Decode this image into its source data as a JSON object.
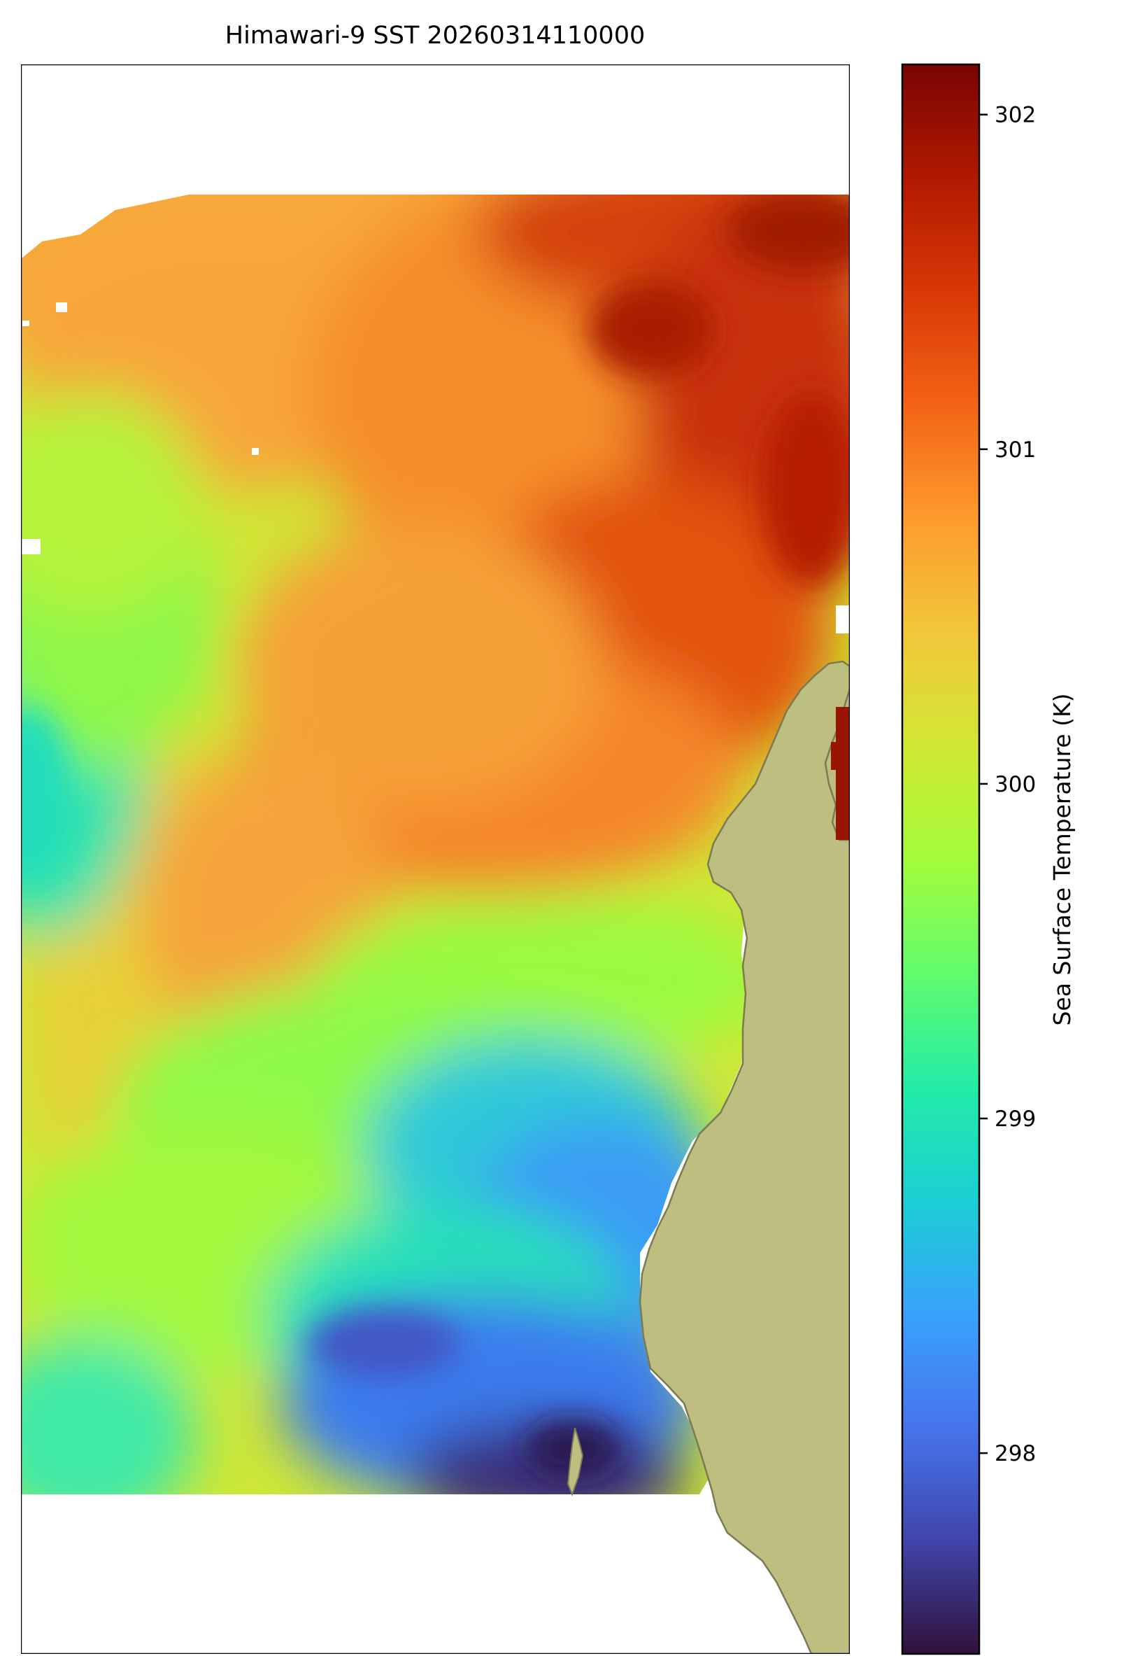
{
  "map": {
    "title": "Himawari-9 SST 20260314110000",
    "variable": "Sea Surface Temperature",
    "units": "K",
    "land_color": "#BDBE80",
    "coastline_color": "#7A7A55",
    "no_data_color": "#FFFFFF",
    "colormap_name": "turbo",
    "colormap": [
      "#30123B",
      "#4145AB",
      "#4675ED",
      "#39A2FC",
      "#1BCFD4",
      "#24ECA6",
      "#61FC6C",
      "#A4FC3B",
      "#D1E834",
      "#F3C63A",
      "#FE9B2D",
      "#F36315",
      "#D93806",
      "#B11901",
      "#7A0402"
    ]
  },
  "colorbar": {
    "label": "Sea Surface Temperature (K)",
    "vmin": 297.4,
    "vmax": 302.15,
    "ticks": [
      {
        "value": 298,
        "label": "298"
      },
      {
        "value": 299,
        "label": "299"
      },
      {
        "value": 300,
        "label": "300"
      },
      {
        "value": 301,
        "label": "301"
      },
      {
        "value": 302,
        "label": "302"
      }
    ]
  }
}
